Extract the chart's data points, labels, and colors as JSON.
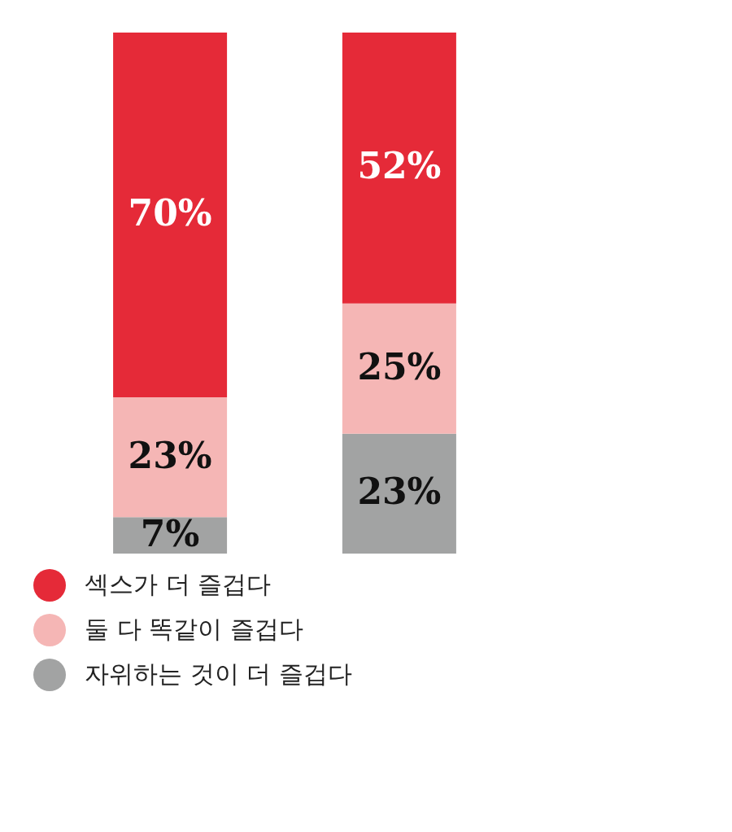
{
  "chart_data": {
    "type": "bar",
    "stacked": true,
    "categories": [
      null,
      null
    ],
    "series": [
      {
        "name": "자위하는 것이 더 즐겁다",
        "color": "#a2a3a3",
        "values": [
          7,
          23
        ],
        "value_labels": [
          "7%",
          "23%"
        ]
      },
      {
        "name": "둘 다 똑같이 즐겁다",
        "color": "#f5b6b5",
        "values": [
          23,
          25
        ],
        "value_labels": [
          "23%",
          "25%"
        ]
      },
      {
        "name": "섹스가 더 즐겁다",
        "color": "#e52a38",
        "values": [
          70,
          52
        ],
        "value_labels": [
          "70%",
          "52%"
        ]
      }
    ],
    "tick_labels": false,
    "legend": "bottom"
  }
}
